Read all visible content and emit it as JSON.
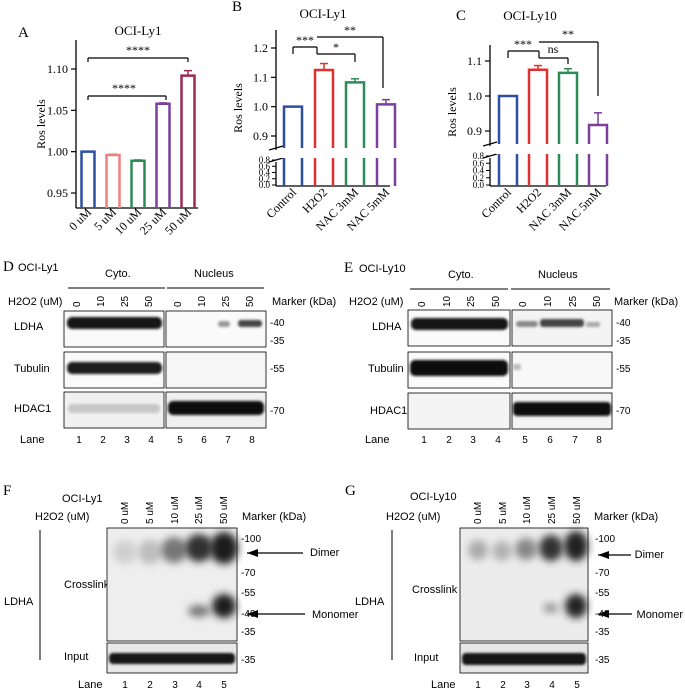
{
  "charts": [
    {
      "panel": "A",
      "title": "OCI-Ly1",
      "ylabel": "Ros levels",
      "categories": [
        "0 uM",
        "5 uM",
        "10 uM",
        "25 uM",
        "50 uM"
      ],
      "yticks": [
        "0.95",
        "1.00",
        "1.05",
        "1.10"
      ],
      "sig": [
        "****",
        "****"
      ]
    },
    {
      "panel": "B",
      "title": "OCI-Ly1",
      "ylabel": "Ros levels",
      "categories": [
        "Control",
        "H2O2",
        "NAC 3mM",
        "NAC 5mM"
      ],
      "yticks": [
        "0.9",
        "1.0",
        "1.1",
        "1.2"
      ],
      "lowticks": [
        "0.0",
        "0.2",
        "0.4",
        "0.6",
        "0.8"
      ],
      "sig": [
        "***",
        "*",
        "**"
      ]
    },
    {
      "panel": "C",
      "title": "OCI-Ly10",
      "ylabel": "Ros levels",
      "categories": [
        "Control",
        "H2O2",
        "NAC 3mM",
        "NAC 5mM"
      ],
      "yticks": [
        "0.9",
        "1.0",
        "1.1"
      ],
      "lowticks": [
        "0.0",
        "0.2",
        "0.4",
        "0.6",
        "0.8"
      ],
      "sig": [
        "***",
        "ns",
        "**"
      ]
    }
  ],
  "chart_data": [
    {
      "type": "bar",
      "title": "OCI-Ly1",
      "ylabel": "Ros levels",
      "xlabel": "",
      "categories": [
        "0 uM",
        "5 uM",
        "10 uM",
        "25 uM",
        "50 uM"
      ],
      "values": [
        1.0,
        0.996,
        0.989,
        1.058,
        1.092
      ],
      "errors": [
        0.0,
        0.001,
        0.001,
        0.001,
        0.006
      ],
      "ylim": [
        0.95,
        1.12
      ],
      "colors": [
        "#2d4fa0",
        "#f08080",
        "#2e8b57",
        "#7b3f9e",
        "#9c2b50"
      ]
    },
    {
      "type": "bar",
      "title": "OCI-Ly1",
      "ylabel": "Ros levels",
      "xlabel": "",
      "categories": [
        "Control",
        "H2O2",
        "NAC 3mM",
        "NAC 5mM"
      ],
      "values": [
        1.0,
        1.125,
        1.083,
        1.008
      ],
      "errors": [
        0.0,
        0.022,
        0.012,
        0.016
      ],
      "ylim": [
        0.85,
        1.25
      ],
      "colors": [
        "#2d4fa0",
        "#e03030",
        "#2e8b57",
        "#7b3f9e"
      ]
    },
    {
      "type": "bar",
      "title": "OCI-Ly10",
      "ylabel": "Ros levels",
      "xlabel": "",
      "categories": [
        "Control",
        "H2O2",
        "NAC 3mM",
        "NAC 5mM"
      ],
      "values": [
        1.0,
        1.075,
        1.066,
        0.917
      ],
      "errors": [
        0.0,
        0.012,
        0.012,
        0.035
      ],
      "ylim": [
        0.85,
        1.15
      ],
      "colors": [
        "#2d4fa0",
        "#e03030",
        "#2e8b57",
        "#7b3f9e"
      ]
    }
  ],
  "panel_d": {
    "label": "D",
    "cell": "OCI-Ly1",
    "treatment": "H2O2 (uM)",
    "group_left": "Cyto.",
    "group_right": "Nucleus",
    "marker_header": "Marker (kDa)",
    "doses": [
      "0",
      "10",
      "25",
      "50",
      "0",
      "10",
      "25",
      "50"
    ],
    "rows": [
      "LDHA",
      "Tubulin",
      "HDAC1"
    ],
    "markers": [
      "-40",
      "-35",
      "-55",
      "-70"
    ],
    "lane_label": "Lane",
    "lanes": [
      "1",
      "2",
      "3",
      "4",
      "5",
      "6",
      "7",
      "8"
    ]
  },
  "panel_e": {
    "label": "E",
    "cell": "OCI-Ly10",
    "treatment": "H2O2 (uM)",
    "group_left": "Cyto.",
    "group_right": "Nucleus",
    "marker_header": "Marker (kDa)",
    "doses": [
      "0",
      "10",
      "25",
      "50",
      "0",
      "10",
      "25",
      "50"
    ],
    "rows": [
      "LDHA",
      "Tubulin",
      "HDAC1"
    ],
    "markers": [
      "-40",
      "-35",
      "-55",
      "-70"
    ],
    "lane_label": "Lane",
    "lanes": [
      "1",
      "2",
      "3",
      "4",
      "5",
      "6",
      "7",
      "8"
    ]
  },
  "panel_f": {
    "label": "F",
    "cell": "OCI-Ly1",
    "treatment": "H2O2 (uM)",
    "doses": [
      "0 uM",
      "5 uM",
      "10 uM",
      "25 uM",
      "50 uM"
    ],
    "marker_header": "Marker (kDa)",
    "protein": "LDHA",
    "rows": [
      "Crosslink",
      "Input"
    ],
    "markers": [
      "-100",
      "-70",
      "-55",
      "-40",
      "-35",
      "-35"
    ],
    "dimer": "Dimer",
    "monomer": "Monomer",
    "lane_label": "Lane",
    "lanes": [
      "1",
      "2",
      "3",
      "4",
      "5"
    ]
  },
  "panel_g": {
    "label": "G",
    "cell": "OCI-Ly10",
    "treatment": "H2O2 (uM)",
    "doses": [
      "0 uM",
      "5 uM",
      "10 uM",
      "25 uM",
      "50 uM"
    ],
    "marker_header": "Marker (kDa)",
    "protein": "LDHA",
    "rows": [
      "Crosslink",
      "Input"
    ],
    "markers": [
      "-100",
      "-70",
      "-55",
      "-40",
      "-35",
      "-35"
    ],
    "dimer": "Dimer",
    "monomer": "Monomer",
    "lane_label": "Lane",
    "lanes": [
      "1",
      "2",
      "3",
      "4",
      "5"
    ]
  }
}
